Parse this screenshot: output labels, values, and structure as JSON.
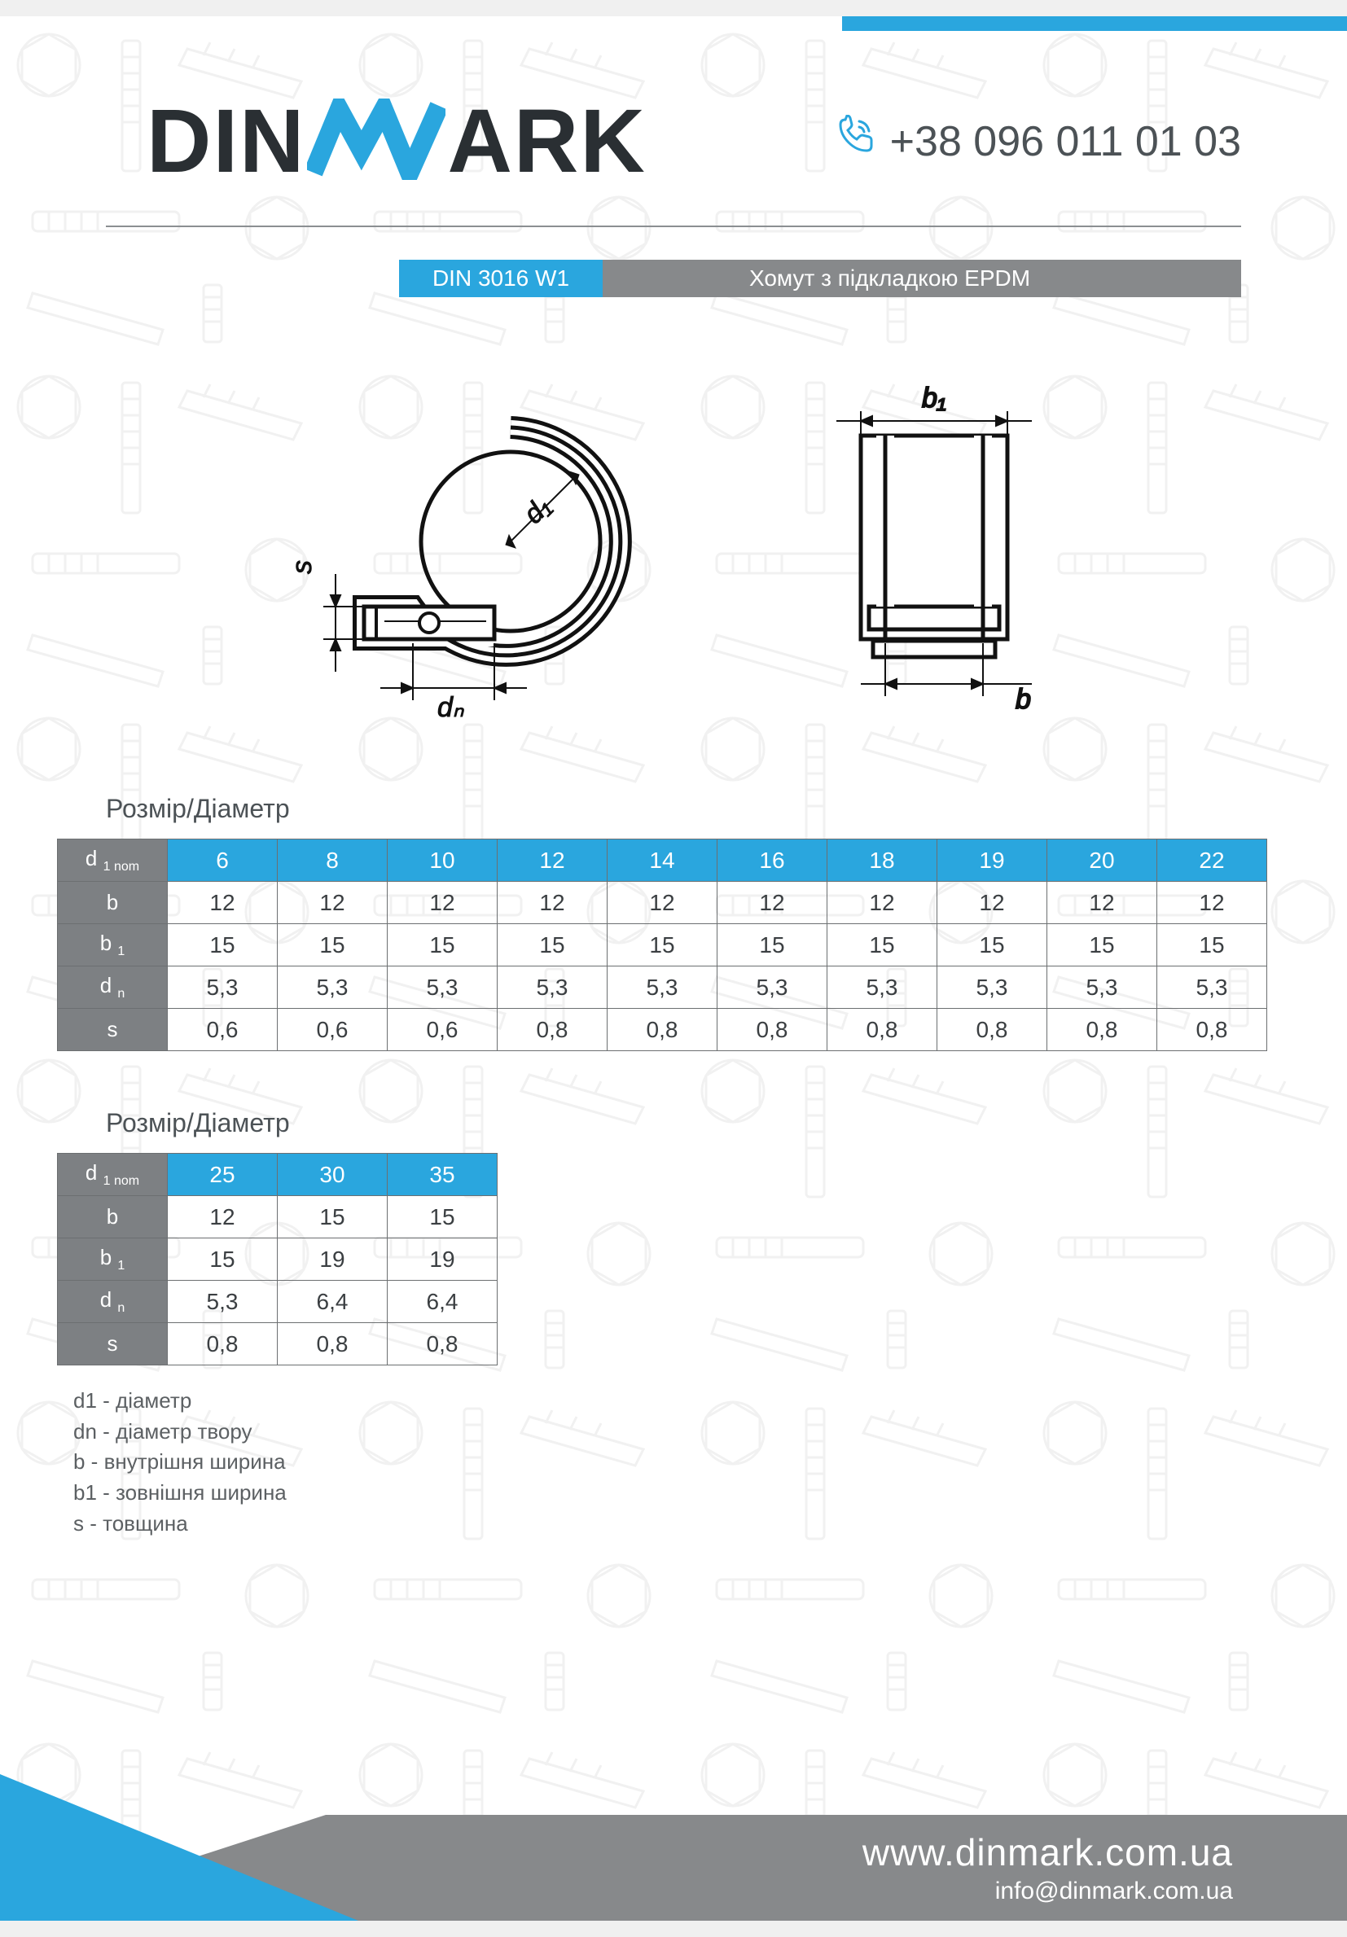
{
  "colors": {
    "accent": "#2aa6de",
    "gray": "#87898b",
    "row_header": "#7d8083",
    "text": "#3b3f42",
    "text_light": "#5c6063",
    "border": "#6c6f71",
    "logo_dark": "#2a2f33"
  },
  "header": {
    "logo_parts": {
      "pre": "DIN",
      "post": "ARK"
    },
    "phone": "+38 096 011 01 03"
  },
  "title_bar": {
    "code": "DIN 3016 W1",
    "description": "Хомут з підкладкою EPDM"
  },
  "diagram": {
    "labels": {
      "s": "s",
      "dn": "dₙ",
      "d1": "d₁",
      "b1": "b₁",
      "b": "b"
    }
  },
  "section_title": "Розмір/Діаметр",
  "table1": {
    "row_headers": [
      "d 1 nom",
      "b",
      "b 1",
      "d n",
      "s"
    ],
    "col_headers": [
      "6",
      "8",
      "10",
      "12",
      "14",
      "16",
      "18",
      "19",
      "20",
      "22"
    ],
    "rows": [
      [
        "12",
        "12",
        "12",
        "12",
        "12",
        "12",
        "12",
        "12",
        "12",
        "12"
      ],
      [
        "15",
        "15",
        "15",
        "15",
        "15",
        "15",
        "15",
        "15",
        "15",
        "15"
      ],
      [
        "5,3",
        "5,3",
        "5,3",
        "5,3",
        "5,3",
        "5,3",
        "5,3",
        "5,3",
        "5,3",
        "5,3"
      ],
      [
        "0,6",
        "0,6",
        "0,6",
        "0,8",
        "0,8",
        "0,8",
        "0,8",
        "0,8",
        "0,8",
        "0,8"
      ]
    ]
  },
  "table2": {
    "row_headers": [
      "d 1 nom",
      "b",
      "b 1",
      "d n",
      "s"
    ],
    "col_headers": [
      "25",
      "30",
      "35"
    ],
    "rows": [
      [
        "12",
        "15",
        "15"
      ],
      [
        "15",
        "19",
        "19"
      ],
      [
        "5,3",
        "6,4",
        "6,4"
      ],
      [
        "0,8",
        "0,8",
        "0,8"
      ]
    ]
  },
  "legend": [
    "d1 - діаметр",
    "dn - діаметр твору",
    "b - внутрішня ширина",
    "b1 - зовнішня ширина",
    "s - товщина"
  ],
  "footer": {
    "website": "www.dinmark.com.ua",
    "email": "info@dinmark.com.ua"
  }
}
